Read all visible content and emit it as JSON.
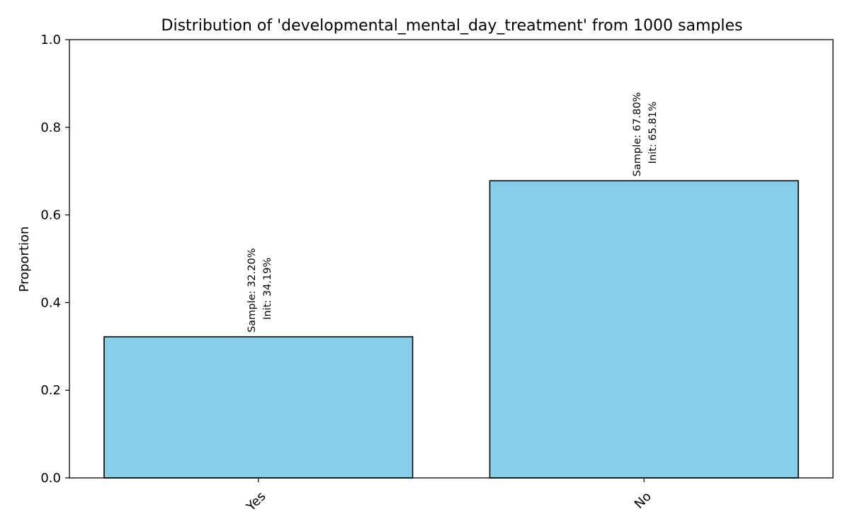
{
  "chart_data": {
    "type": "bar",
    "title": "Distribution of 'developmental_mental_day_treatment' from 1000 samples",
    "xlabel": "",
    "ylabel": "Proportion",
    "categories": [
      "Yes",
      "No"
    ],
    "values": [
      0.322,
      0.678
    ],
    "bar_labels": [
      [
        "Sample: 32.20%",
        "Init: 34.19%"
      ],
      [
        "Sample: 67.80%",
        "Init: 65.81%"
      ]
    ],
    "ylim": [
      0,
      1.0
    ],
    "yticks": [
      "0.0",
      "0.2",
      "0.4",
      "0.6",
      "0.8",
      "1.0"
    ],
    "bar_color": "#87CEEB",
    "edge_color": "#000000",
    "grid": false,
    "legend": "none"
  }
}
